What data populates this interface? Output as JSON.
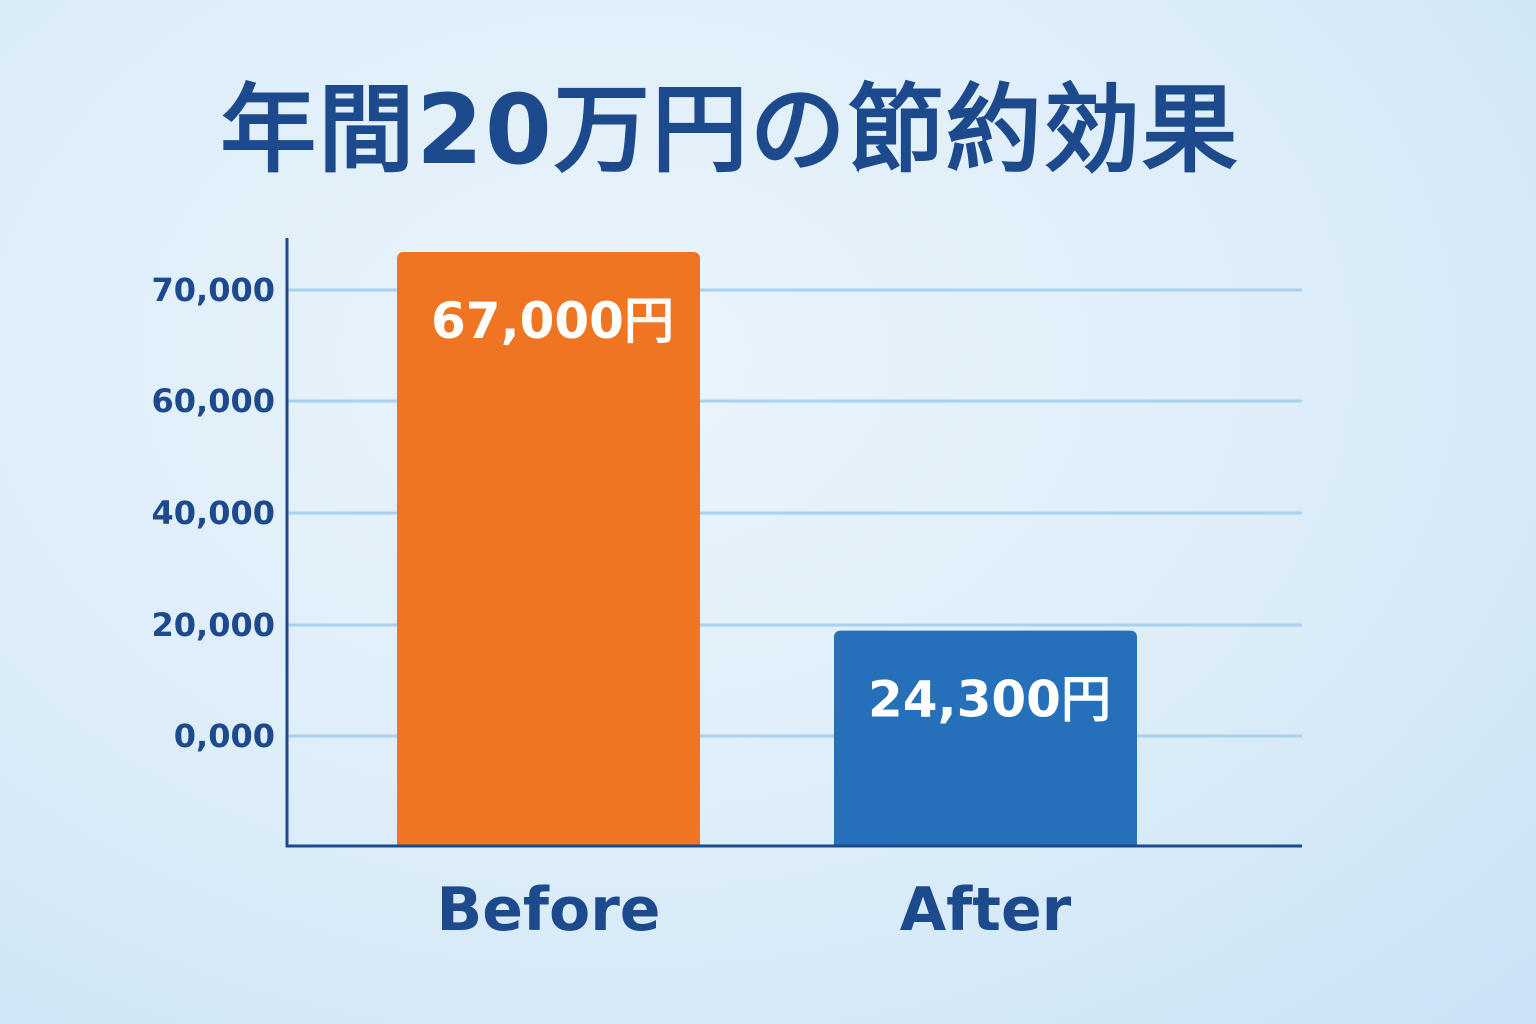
{
  "chart_data": {
    "type": "bar",
    "title": "年間20万円の節約効果",
    "categories": [
      "Before",
      "After"
    ],
    "values": [
      67000,
      24300
    ],
    "data_labels": [
      "67,000円",
      "24,300円"
    ],
    "y_tick_labels": [
      "70,000",
      "60,000",
      "40,000",
      "20,000",
      "0,000"
    ],
    "grid": true,
    "colors": {
      "bars": [
        "#f07522",
        "#2570b8"
      ],
      "grid": "#a9d0ec",
      "axis": "#1d4a8c",
      "text": "#1d4a8c"
    }
  }
}
